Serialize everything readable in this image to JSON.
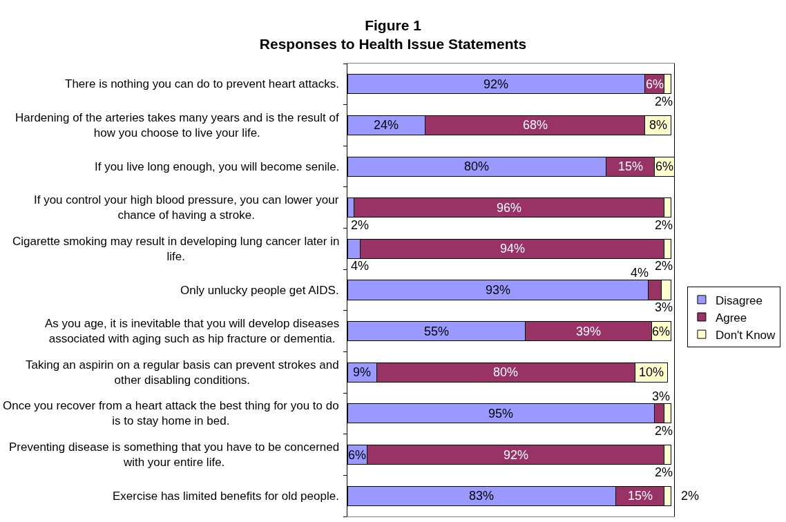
{
  "chart_data": {
    "type": "bar",
    "orientation": "horizontal",
    "stacked": true,
    "title": "Figure 1",
    "subtitle": "Responses to Health Issue Statements",
    "categories": [
      "There is nothing you can do to prevent heart attacks.",
      "Hardening of the arteries takes many years and is the result of how you choose to live your life.",
      "If you live long enough, you will become senile.",
      "If you control your high blood pressure, you can lower your chance of having a stroke.",
      "Cigarette smoking may result in developing lung cancer later in life.",
      "Only unlucky people get AIDS.",
      "As you age, it is inevitable that you will develop diseases associated with aging such as hip fracture or dementia.",
      "Taking an aspirin on a regular basis can prevent strokes and other disabling conditions.",
      "Once you recover from a heart attack the best thing for you to do is to stay home in bed.",
      "Preventing disease is something that you have to be concerned with your entire life.",
      "Exercise has limited benefits for old people."
    ],
    "series": [
      {
        "name": "Disagree",
        "color": "#9999ff",
        "values": [
          92,
          24,
          80,
          2,
          4,
          93,
          55,
          9,
          95,
          6,
          83
        ],
        "value_labels": [
          "92%",
          "24%",
          "80%",
          "2%",
          "4%",
          "93%",
          "55%",
          "9%",
          "95%",
          "6%",
          "83%"
        ]
      },
      {
        "name": "Agree",
        "color": "#993366",
        "values": [
          6,
          68,
          15,
          96,
          94,
          4,
          39,
          80,
          3,
          92,
          15
        ],
        "value_labels": [
          "6%",
          "68%",
          "15%",
          "96%",
          "94%",
          "4%",
          "39%",
          "80%",
          "3%",
          "92%",
          "15%"
        ]
      },
      {
        "name": "Don't Know",
        "color": "#ffffcc",
        "values": [
          2,
          8,
          6,
          2,
          2,
          3,
          6,
          10,
          2,
          2,
          2
        ],
        "value_labels": [
          "2%",
          "8%",
          "6%",
          "2%",
          "2%",
          "3%",
          "6%",
          "10%",
          "2%",
          "2%",
          "2%"
        ]
      }
    ],
    "legend": "right",
    "tick_labels": "y"
  }
}
